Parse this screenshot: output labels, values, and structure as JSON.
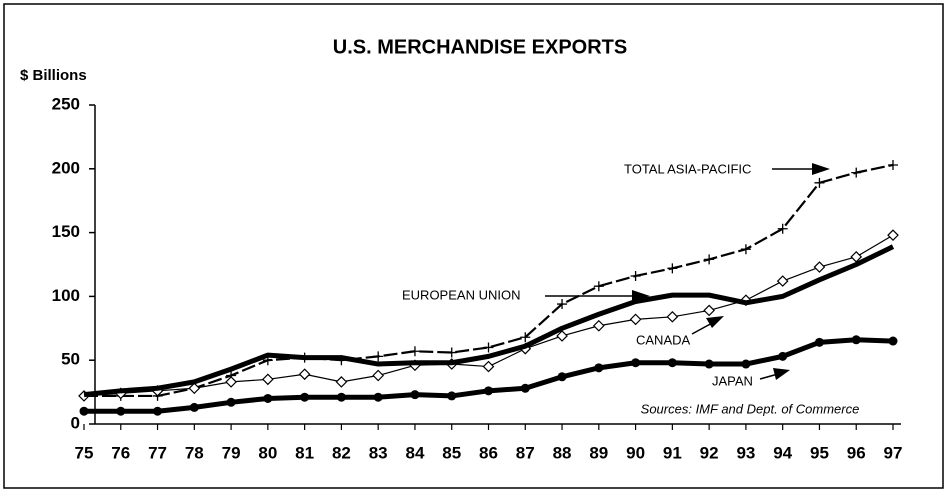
{
  "chart_data": {
    "type": "line",
    "title": "U.S. MERCHANDISE EXPORTS",
    "y_label": "$ Billions",
    "source": "Sources: IMF and Dept. of Commerce",
    "categories": [
      "75",
      "76",
      "77",
      "78",
      "79",
      "80",
      "81",
      "82",
      "83",
      "84",
      "85",
      "86",
      "87",
      "88",
      "89",
      "90",
      "91",
      "92",
      "93",
      "94",
      "95",
      "96",
      "97"
    ],
    "ylim": [
      0,
      250
    ],
    "yticks": [
      0,
      50,
      100,
      150,
      200,
      250
    ],
    "grid": false,
    "series": [
      {
        "name": "TOTAL ASIA-PACIFIC",
        "color": "#000000",
        "marker": "plus",
        "style": "dashed",
        "values": [
          22,
          22,
          22,
          28,
          38,
          50,
          52,
          50,
          53,
          57,
          56,
          60,
          68,
          94,
          108,
          116,
          122,
          129,
          137,
          153,
          189,
          197,
          203
        ]
      },
      {
        "name": "CANADA",
        "color": "#000000",
        "marker": "diamond",
        "style": "thin",
        "values": [
          22,
          24,
          26,
          28,
          33,
          35,
          39,
          33,
          38,
          46,
          47,
          45,
          59,
          69,
          77,
          82,
          84,
          89,
          97,
          112,
          123,
          131,
          148
        ]
      },
      {
        "name": "EUROPEAN UNION",
        "color": "#000000",
        "marker": "none",
        "style": "thick",
        "values": [
          23,
          26,
          28,
          33,
          43,
          54,
          52,
          52,
          47,
          48,
          48,
          53,
          61,
          75,
          86,
          96,
          101,
          101,
          95,
          100,
          113,
          125,
          139
        ]
      },
      {
        "name": "JAPAN",
        "color": "#000000",
        "marker": "circle",
        "style": "thick",
        "values": [
          10,
          10,
          10,
          13,
          17,
          20,
          21,
          21,
          21,
          23,
          22,
          26,
          28,
          37,
          44,
          48,
          48,
          47,
          47,
          53,
          64,
          66,
          65
        ]
      }
    ]
  }
}
